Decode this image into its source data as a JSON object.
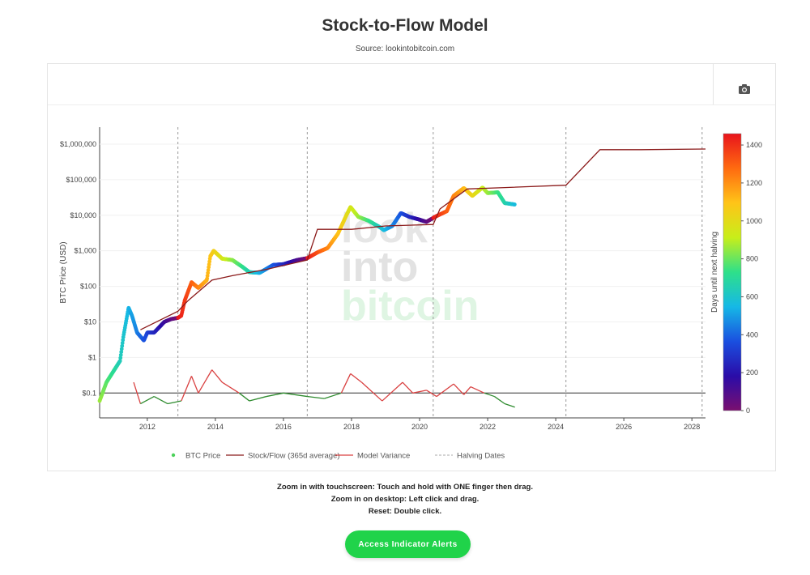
{
  "page": {
    "title": "Stock-to-Flow Model",
    "subtitle": "Source: lookintobitcoin.com"
  },
  "instructions": [
    "Zoom in with touchscreen: Touch and hold with ONE finger then drag.",
    "Zoom in on desktop: Left click and drag.",
    "Reset: Double click."
  ],
  "cta": {
    "label": "Access Indicator Alerts",
    "color": "#20d34a"
  },
  "toolbar": {
    "camera_icon": "camera-icon"
  },
  "watermark": [
    "look",
    "into",
    "bitcoin"
  ],
  "chart_data": {
    "type": "line",
    "title": "Stock-to-Flow Model",
    "xlabel": "",
    "ylabel": "BTC Price (USD)",
    "y_scale": "log",
    "xlim": [
      2010.6,
      2028.4
    ],
    "ylim": [
      0.02,
      3000000
    ],
    "x_ticks": [
      2012,
      2014,
      2016,
      2018,
      2020,
      2022,
      2024,
      2026,
      2028
    ],
    "y_ticks": [
      {
        "value": 1000000,
        "label": "$1,000,000"
      },
      {
        "value": 100000,
        "label": "$100,000"
      },
      {
        "value": 10000,
        "label": "$10,000"
      },
      {
        "value": 1000,
        "label": "$1,000"
      },
      {
        "value": 100,
        "label": "$100"
      },
      {
        "value": 10,
        "label": "$10"
      },
      {
        "value": 1,
        "label": "$1"
      },
      {
        "value": 0.1,
        "label": "$0.1"
      }
    ],
    "halving_dates": [
      2012.9,
      2016.7,
      2020.4,
      2024.3,
      2028.3
    ],
    "variance_reference_line": 0.1,
    "colorscale": {
      "title": "Days until next halving",
      "min": 0,
      "max": 1460,
      "ticks": [
        0,
        200,
        400,
        600,
        800,
        1000,
        1200,
        1400
      ],
      "stops": [
        "#7a0f6f",
        "#2a0ca8",
        "#1a4fe0",
        "#16b8e6",
        "#2ee08a",
        "#c8ee1a",
        "#ffc418",
        "#ff6a10",
        "#e8141c"
      ]
    },
    "legend": [
      {
        "name": "BTC Price",
        "kind": "marker",
        "color": "#4cd15a"
      },
      {
        "name": "Stock/Flow (365d average)",
        "kind": "line",
        "color": "#8b1a1a"
      },
      {
        "name": "Model Variance",
        "kind": "line",
        "color": "#d94141"
      },
      {
        "name": "Halving Dates",
        "kind": "dash",
        "color": "#aaaaaa"
      }
    ],
    "series": [
      {
        "name": "BTC Price",
        "x": [
          2010.6,
          2010.8,
          2011.0,
          2011.2,
          2011.3,
          2011.45,
          2011.55,
          2011.7,
          2011.9,
          2012.0,
          2012.2,
          2012.5,
          2012.7,
          2012.9,
          2013.0,
          2013.1,
          2013.3,
          2013.5,
          2013.75,
          2013.85,
          2013.95,
          2014.2,
          2014.5,
          2014.8,
          2015.0,
          2015.3,
          2015.7,
          2016.0,
          2016.4,
          2016.7,
          2017.0,
          2017.3,
          2017.6,
          2017.85,
          2017.97,
          2018.2,
          2018.5,
          2018.85,
          2018.95,
          2019.2,
          2019.45,
          2019.7,
          2020.0,
          2020.2,
          2020.5,
          2020.8,
          2021.0,
          2021.3,
          2021.55,
          2021.85,
          2022.0,
          2022.3,
          2022.5,
          2022.8
        ],
        "y": [
          0.06,
          0.2,
          0.4,
          0.8,
          4,
          25,
          15,
          5,
          3,
          5,
          5,
          10,
          12,
          13,
          15,
          40,
          130,
          90,
          150,
          700,
          1000,
          600,
          550,
          350,
          250,
          240,
          400,
          420,
          550,
          620,
          900,
          1200,
          3000,
          10000,
          17000,
          9000,
          7000,
          4500,
          3800,
          5000,
          11500,
          9000,
          7500,
          6500,
          9500,
          13000,
          35000,
          58000,
          35000,
          60000,
          42000,
          44000,
          22000,
          20000
        ]
      },
      {
        "name": "Stock/Flow (365d average)",
        "x": [
          2011.8,
          2012.9,
          2013.2,
          2013.9,
          2014.5,
          2015.5,
          2016.7,
          2017.0,
          2018.0,
          2019.0,
          2020.4,
          2020.6,
          2021.4,
          2022.5,
          2024.3,
          2025.3,
          2026.5,
          2028.4
        ],
        "y": [
          6,
          20,
          40,
          150,
          200,
          300,
          550,
          4000,
          4000,
          5000,
          5500,
          15000,
          55000,
          60000,
          70000,
          700000,
          700000,
          730000
        ]
      },
      {
        "name": "Model Variance",
        "x": [
          2011.6,
          2011.8,
          2012.2,
          2012.6,
          2013.0,
          2013.3,
          2013.5,
          2013.9,
          2014.2,
          2014.7,
          2015.0,
          2015.5,
          2016.0,
          2016.7,
          2017.2,
          2017.7,
          2017.97,
          2018.3,
          2018.9,
          2019.5,
          2019.8,
          2020.2,
          2020.5,
          2021.0,
          2021.3,
          2021.5,
          2021.9,
          2022.2,
          2022.5,
          2022.8
        ],
        "y": [
          0.2,
          0.05,
          0.08,
          0.05,
          0.06,
          0.3,
          0.1,
          0.45,
          0.2,
          0.1,
          0.06,
          0.08,
          0.1,
          0.08,
          0.07,
          0.1,
          0.35,
          0.2,
          0.06,
          0.2,
          0.1,
          0.12,
          0.08,
          0.18,
          0.09,
          0.15,
          0.1,
          0.08,
          0.05,
          0.04
        ]
      }
    ]
  }
}
